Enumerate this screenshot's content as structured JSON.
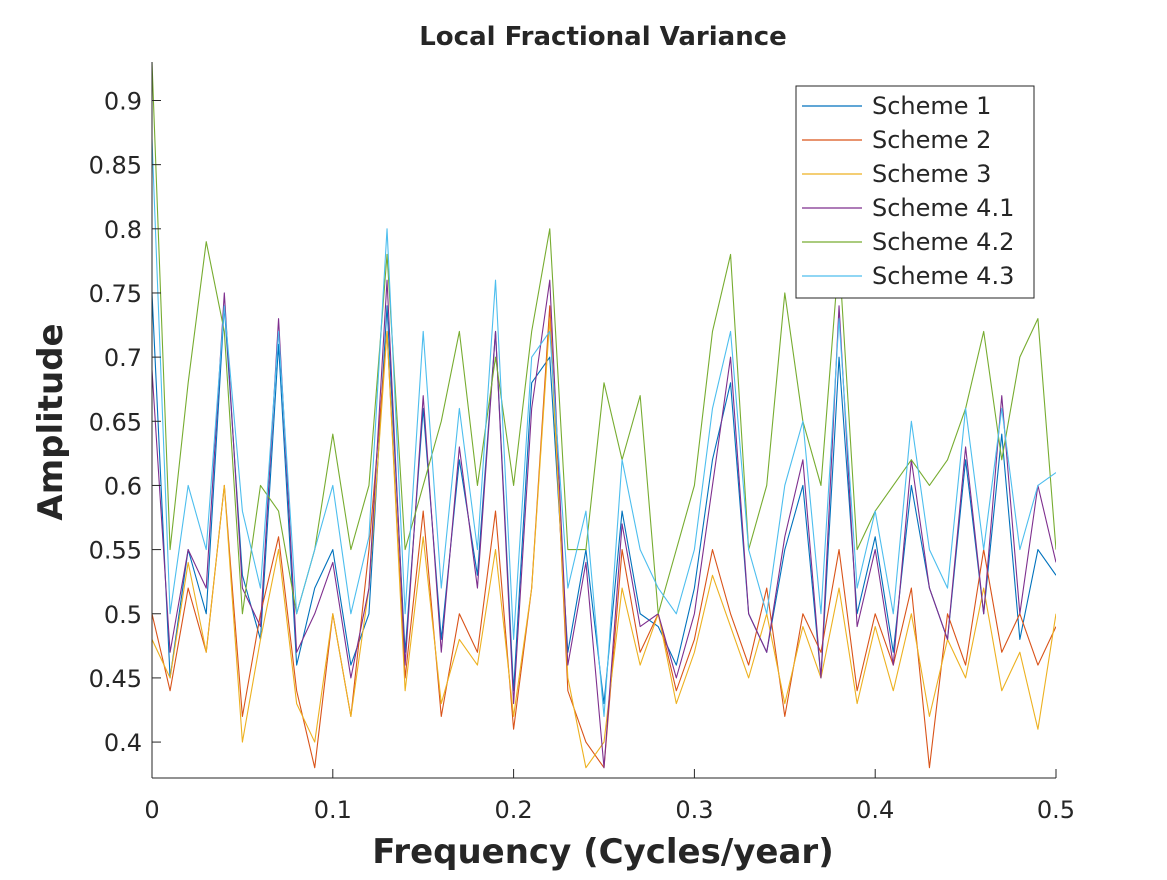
{
  "chart_data": {
    "type": "line",
    "title": "Local Fractional Variance",
    "xlabel": "Frequency (Cycles/year)",
    "ylabel": "Amplitude",
    "xlim": [
      0,
      0.5
    ],
    "ylim": [
      0.372,
      0.93
    ],
    "xticks": [
      0,
      0.1,
      0.2,
      0.3,
      0.4,
      0.5
    ],
    "xtick_labels": [
      "0",
      "0.1",
      "0.2",
      "0.3",
      "0.4",
      "0.5"
    ],
    "yticks": [
      0.4,
      0.45,
      0.5,
      0.55,
      0.6,
      0.65,
      0.7,
      0.75,
      0.8,
      0.85,
      0.9
    ],
    "ytick_labels": [
      "0.4",
      "0.45",
      "0.5",
      "0.55",
      "0.6",
      "0.65",
      "0.7",
      "0.75",
      "0.8",
      "0.85",
      "0.9"
    ],
    "grid": false,
    "legend_position": "top-right",
    "x": [
      0,
      0.01,
      0.02,
      0.03,
      0.04,
      0.05,
      0.06,
      0.07,
      0.08,
      0.09,
      0.1,
      0.11,
      0.12,
      0.13,
      0.14,
      0.15,
      0.16,
      0.17,
      0.18,
      0.19,
      0.2,
      0.21,
      0.22,
      0.23,
      0.24,
      0.25,
      0.26,
      0.27,
      0.28,
      0.29,
      0.3,
      0.31,
      0.32,
      0.33,
      0.34,
      0.35,
      0.36,
      0.37,
      0.38,
      0.39,
      0.4,
      0.41,
      0.42,
      0.43,
      0.44,
      0.45,
      0.46,
      0.47,
      0.48,
      0.49,
      0.5
    ],
    "series": [
      {
        "name": "Scheme 1",
        "color": "#0072BD",
        "values": [
          0.75,
          0.45,
          0.55,
          0.5,
          0.74,
          0.53,
          0.48,
          0.71,
          0.46,
          0.52,
          0.55,
          0.46,
          0.5,
          0.74,
          0.47,
          0.66,
          0.48,
          0.62,
          0.53,
          0.72,
          0.44,
          0.68,
          0.7,
          0.47,
          0.55,
          0.43,
          0.58,
          0.5,
          0.49,
          0.46,
          0.52,
          0.62,
          0.68,
          0.5,
          0.47,
          0.55,
          0.6,
          0.45,
          0.7,
          0.5,
          0.56,
          0.47,
          0.6,
          0.52,
          0.48,
          0.62,
          0.5,
          0.64,
          0.48,
          0.55,
          0.53
        ]
      },
      {
        "name": "Scheme 2",
        "color": "#D95319",
        "values": [
          0.5,
          0.44,
          0.52,
          0.47,
          0.6,
          0.42,
          0.5,
          0.56,
          0.44,
          0.38,
          0.5,
          0.42,
          0.55,
          0.72,
          0.45,
          0.58,
          0.42,
          0.5,
          0.47,
          0.58,
          0.41,
          0.52,
          0.74,
          0.44,
          0.4,
          0.38,
          0.55,
          0.47,
          0.5,
          0.44,
          0.48,
          0.55,
          0.5,
          0.46,
          0.52,
          0.42,
          0.5,
          0.47,
          0.55,
          0.44,
          0.5,
          0.46,
          0.52,
          0.38,
          0.5,
          0.46,
          0.55,
          0.47,
          0.5,
          0.46,
          0.49
        ]
      },
      {
        "name": "Scheme 3",
        "color": "#EDB120",
        "values": [
          0.48,
          0.45,
          0.54,
          0.47,
          0.6,
          0.4,
          0.48,
          0.55,
          0.43,
          0.4,
          0.5,
          0.42,
          0.52,
          0.72,
          0.44,
          0.56,
          0.43,
          0.48,
          0.46,
          0.55,
          0.42,
          0.52,
          0.73,
          0.45,
          0.38,
          0.4,
          0.52,
          0.46,
          0.5,
          0.43,
          0.47,
          0.53,
          0.49,
          0.45,
          0.5,
          0.43,
          0.49,
          0.45,
          0.52,
          0.43,
          0.49,
          0.44,
          0.5,
          0.42,
          0.48,
          0.45,
          0.52,
          0.44,
          0.47,
          0.41,
          0.5
        ]
      },
      {
        "name": "Scheme 4.1",
        "color": "#7E2F8E",
        "values": [
          0.69,
          0.47,
          0.55,
          0.52,
          0.75,
          0.52,
          0.49,
          0.73,
          0.47,
          0.5,
          0.54,
          0.45,
          0.52,
          0.76,
          0.46,
          0.67,
          0.47,
          0.63,
          0.52,
          0.72,
          0.43,
          0.66,
          0.76,
          0.46,
          0.54,
          0.38,
          0.57,
          0.49,
          0.5,
          0.45,
          0.5,
          0.6,
          0.7,
          0.5,
          0.47,
          0.56,
          0.62,
          0.45,
          0.74,
          0.49,
          0.55,
          0.46,
          0.62,
          0.52,
          0.48,
          0.63,
          0.5,
          0.67,
          0.5,
          0.6,
          0.54
        ]
      },
      {
        "name": "Scheme 4.2",
        "color": "#77AC30",
        "values": [
          0.93,
          0.55,
          0.68,
          0.79,
          0.72,
          0.5,
          0.6,
          0.58,
          0.5,
          0.55,
          0.64,
          0.55,
          0.6,
          0.78,
          0.55,
          0.6,
          0.65,
          0.72,
          0.6,
          0.7,
          0.6,
          0.72,
          0.8,
          0.55,
          0.55,
          0.68,
          0.62,
          0.67,
          0.5,
          0.55,
          0.6,
          0.72,
          0.78,
          0.55,
          0.6,
          0.75,
          0.65,
          0.6,
          0.78,
          0.55,
          0.58,
          0.6,
          0.62,
          0.6,
          0.62,
          0.66,
          0.72,
          0.62,
          0.7,
          0.73,
          0.55
        ]
      },
      {
        "name": "Scheme 4.3",
        "color": "#4DBEEE",
        "values": [
          0.87,
          0.5,
          0.6,
          0.55,
          0.74,
          0.58,
          0.52,
          0.72,
          0.5,
          0.55,
          0.6,
          0.5,
          0.56,
          0.8,
          0.5,
          0.72,
          0.52,
          0.66,
          0.55,
          0.76,
          0.48,
          0.7,
          0.72,
          0.52,
          0.58,
          0.42,
          0.62,
          0.55,
          0.52,
          0.5,
          0.55,
          0.66,
          0.72,
          0.55,
          0.5,
          0.6,
          0.65,
          0.5,
          0.73,
          0.52,
          0.58,
          0.5,
          0.65,
          0.55,
          0.52,
          0.66,
          0.55,
          0.66,
          0.55,
          0.6,
          0.61
        ]
      }
    ]
  }
}
